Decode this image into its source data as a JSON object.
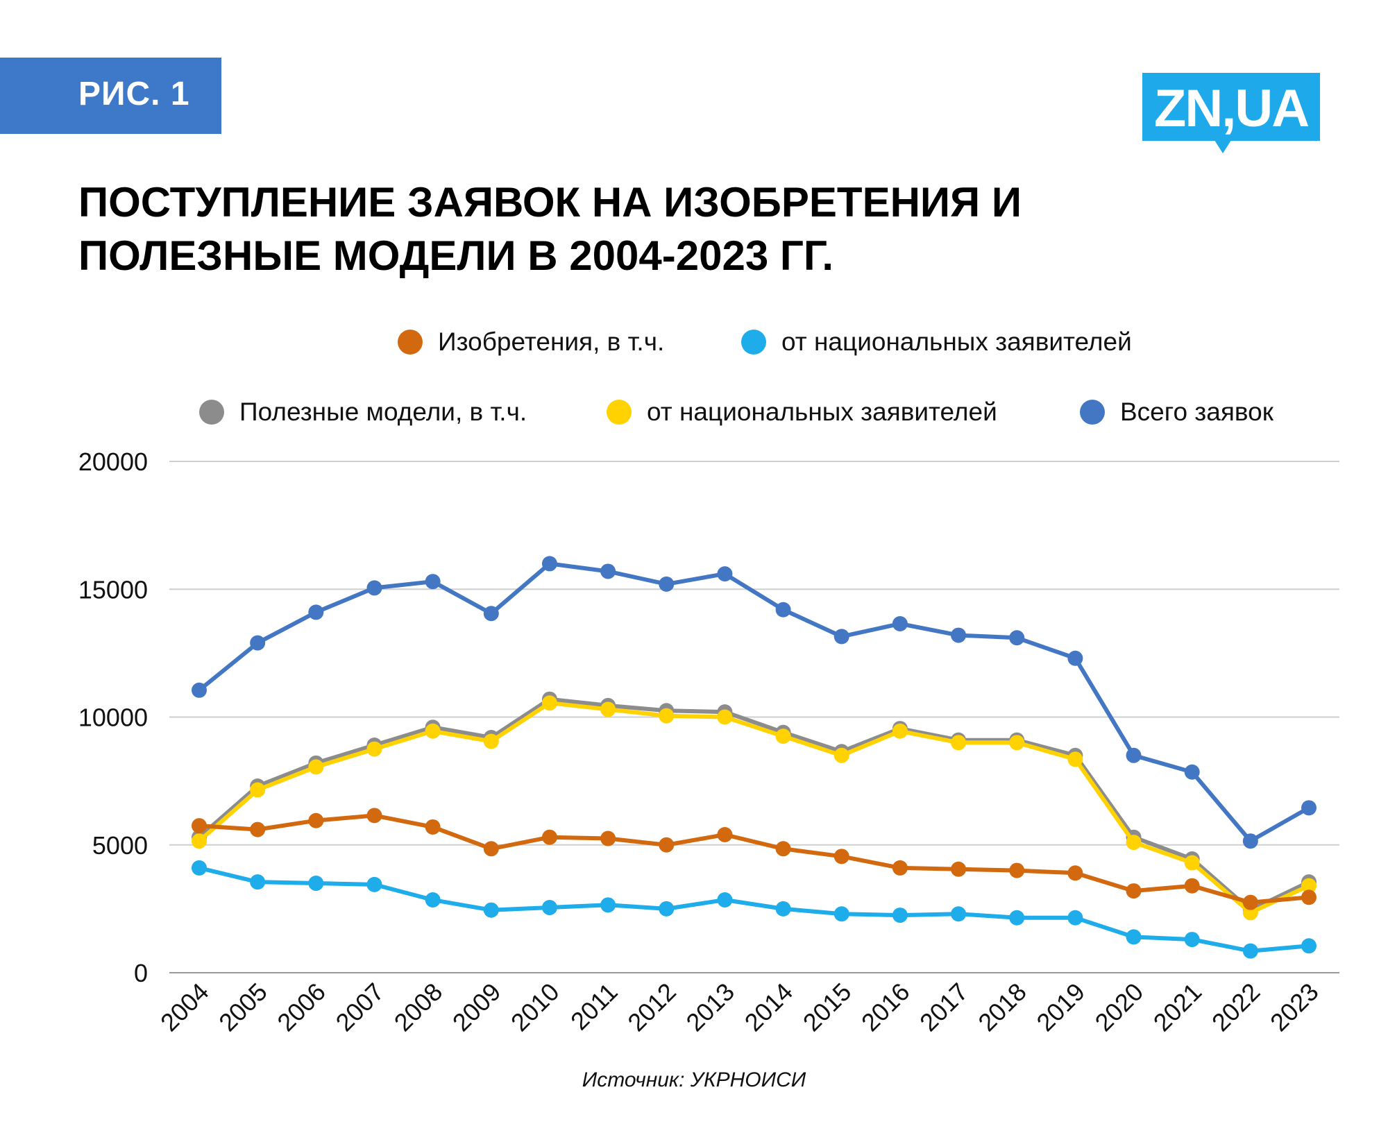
{
  "badge": {
    "label": "РИС. 1"
  },
  "logo": {
    "text": "ZN,UA"
  },
  "title": {
    "line1": "ПОСТУПЛЕНИЕ ЗАЯВОК НА ИЗОБРЕТЕНИЯ И",
    "line2": "ПОЛЕЗНЫЕ МОДЕЛИ В 2004-2023 ГГ."
  },
  "legend": [
    {
      "label": "Изобретения, в т.ч.",
      "color": "#d2690e"
    },
    {
      "label": "от национальных заявителей",
      "color": "#1eaceb"
    },
    {
      "label": "Полезные модели, в т.ч.",
      "color": "#8c8c8c"
    },
    {
      "label": "от национальных заявителей",
      "color": "#ffd200"
    },
    {
      "label": "Всего заявок",
      "color": "#4377c4"
    }
  ],
  "source": "Источник: УКРНОИСИ",
  "chart_data": {
    "type": "line",
    "x": [
      "2004",
      "2005",
      "2006",
      "2007",
      "2008",
      "2009",
      "2010",
      "2011",
      "2012",
      "2013",
      "2014",
      "2015",
      "2016",
      "2017",
      "2018",
      "2019",
      "2020",
      "2021",
      "2022",
      "2023"
    ],
    "ylim": [
      0,
      20000
    ],
    "yticks": [
      "0",
      "5000",
      "10000",
      "15000",
      "20000"
    ],
    "grid": true,
    "legend_position": "top",
    "series": [
      {
        "name": "Полезные модели, в т.ч.",
        "color": "#8c8c8c",
        "values": [
          5300,
          7300,
          8200,
          8900,
          9600,
          9200,
          10700,
          10450,
          10250,
          10200,
          9400,
          8650,
          9550,
          9100,
          9100,
          8500,
          5300,
          4450,
          2450,
          3550
        ]
      },
      {
        "name": "от национальных заявителей",
        "color": "#ffd200",
        "values": [
          5150,
          7150,
          8050,
          8750,
          9450,
          9050,
          10550,
          10300,
          10050,
          10000,
          9250,
          8500,
          9450,
          9000,
          9000,
          8350,
          5100,
          4300,
          2350,
          3400
        ]
      },
      {
        "name": "Изобретения, в т.ч.",
        "color": "#d2690e",
        "values": [
          5750,
          5600,
          5950,
          6150,
          5700,
          4850,
          5300,
          5250,
          5000,
          5400,
          4850,
          4550,
          4100,
          4050,
          4000,
          3900,
          3200,
          3400,
          2750,
          2950
        ]
      },
      {
        "name": "от национальных заявителей",
        "color": "#1eaceb",
        "values": [
          4100,
          3550,
          3500,
          3450,
          2850,
          2450,
          2550,
          2650,
          2500,
          2850,
          2500,
          2300,
          2250,
          2300,
          2150,
          2150,
          1400,
          1300,
          850,
          1050
        ]
      },
      {
        "name": "Всего заявок",
        "color": "#4377c4",
        "values": [
          11050,
          12900,
          14100,
          15050,
          15300,
          14050,
          16000,
          15700,
          15200,
          15600,
          14200,
          13150,
          13650,
          13200,
          13100,
          12300,
          8500,
          7850,
          5150,
          6450
        ]
      }
    ]
  }
}
